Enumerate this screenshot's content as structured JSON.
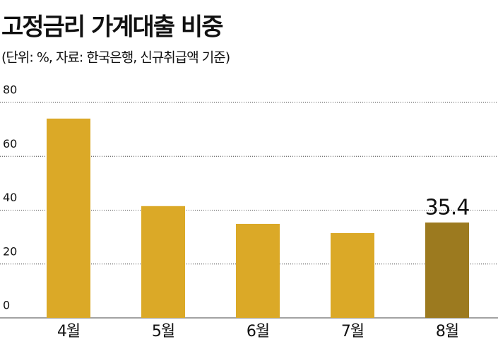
{
  "chart_data": {
    "type": "bar",
    "title": "고정금리 가계대출 비중",
    "subtitle": "(단위: %, 자료: 한국은행, 신규취급액 기준)",
    "categories": [
      "4월",
      "5월",
      "6월",
      "7월",
      "8월"
    ],
    "values": [
      74.0,
      41.5,
      34.9,
      31.5,
      35.4
    ],
    "value_labels": [
      null,
      null,
      null,
      null,
      "35.4"
    ],
    "colors": [
      "#dba927",
      "#dba927",
      "#dba927",
      "#dba927",
      "#9c7a1f"
    ],
    "ylim": [
      0,
      80
    ],
    "yticks": [
      0,
      20,
      40,
      60,
      80
    ],
    "grid": true
  }
}
